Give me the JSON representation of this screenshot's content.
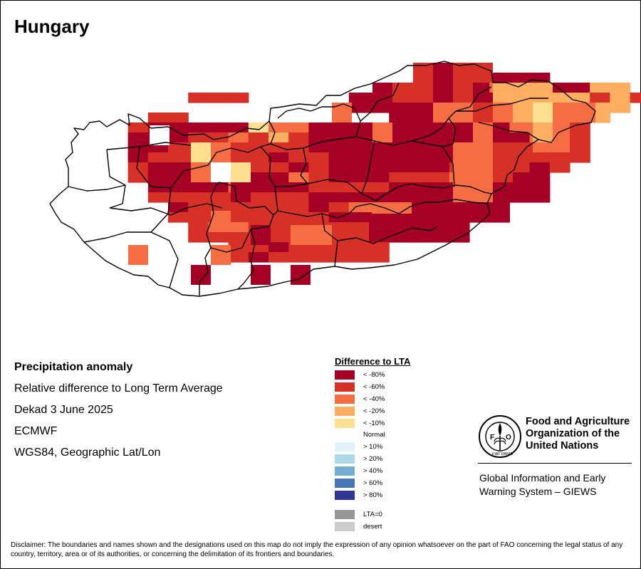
{
  "title": "Hungary",
  "info": {
    "heading": "Precipitation anomaly",
    "subtitle": "Relative difference to Long Term Average",
    "period": "Dekad 3 June 2025",
    "source": "ECMWF",
    "projection": "WGS84, Geographic Lat/Lon"
  },
  "legend": {
    "title": "Difference to LTA",
    "items": [
      {
        "label": "< -80%",
        "color": "#a50026"
      },
      {
        "label": "< -60%",
        "color": "#d73027"
      },
      {
        "label": "< -40%",
        "color": "#f46d43"
      },
      {
        "label": "< -20%",
        "color": "#fdae61"
      },
      {
        "label": "< -10%",
        "color": "#fee090"
      },
      {
        "label": "Normal",
        "color": "#ffffff"
      },
      {
        "label": "> 10%",
        "color": "#e0f3f8"
      },
      {
        "label": "> 20%",
        "color": "#abd9e9"
      },
      {
        "label": "> 40%",
        "color": "#74add1"
      },
      {
        "label": "> 60%",
        "color": "#4575b4"
      },
      {
        "label": "> 80%",
        "color": "#313695"
      },
      {
        "label": "LTA=0",
        "color": "#969696"
      },
      {
        "label": "desert",
        "color": "#cccccc"
      }
    ]
  },
  "org": {
    "name_line1": "Food and Agriculture",
    "name_line2": "Organization of the",
    "name_line3": "United Nations",
    "logo_text": "FAO",
    "logo_motto": "FIAT PANIS",
    "giews_line1": "Global Information and Early",
    "giews_line2": "Warning System – GIEWS"
  },
  "disclaimer": "Disclaimer: The boundaries and names shown and the designations used on this map do not imply the expression of any opinion whatsoever on the part of FAO concerning the legal status of any country, territory, area or of its authorities, or concerning the delimitation of its frontiers and boundaries.",
  "grid_rows": [
    "..................XX..........",
    "....................XXXX.....",
    "..................XXXAAXXX@@.",
    "......BBB.....XXXXXAXXXBCCBCB",
    "..............XXXXXXXAXXXBCC.",
    "....BB..........XXXXXXAAAB@..",
    "...BXXXXXDAAXXXXXXXXXXAAAB...",
    "...XXXBBABCBXXXXXXXXXXXAAB...",
    "...XXBBBBBBBXXXXXXXXXXXAAB...",
    "...XBBBBBBXBBXXXXXXXBBBBBB...",
    "...BXXXBBBBXBXXXXXXBBBBXB....",
    "...BXXXXXXXABXXXBBBAXXXX.....",
    "....XXXXAXXXBBBBXXXXXXXX.....",
    "....BBBBBBBBXXXXXXXXXXXX.....",
    ".....XBBBBBBXBAAXXXXXX.......",
    ".....BBBBBBBBXXXXXXXXX.......",
    "......BAABBBBBBXXXXX.........",
    "......BBBBBBBBBXXXXX.........",
    "........BBXBBBBB.............",
    "........BXBBBBBB............."
  ]
}
